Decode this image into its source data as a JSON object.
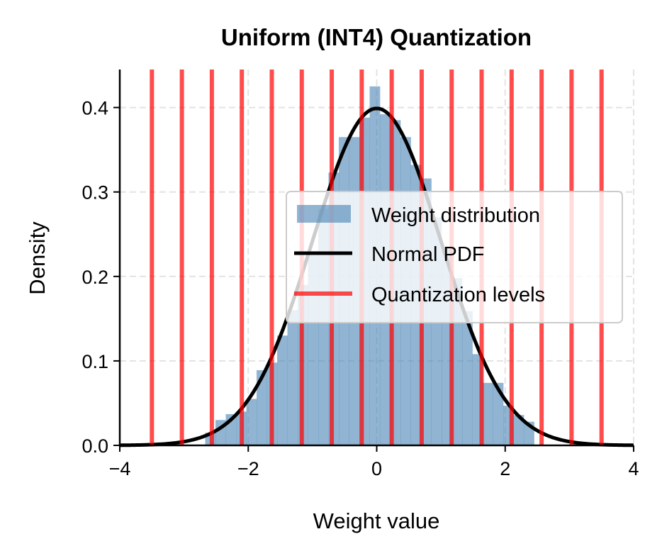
{
  "chart_data": {
    "type": "bar",
    "title": "Uniform (INT4) Quantization",
    "xlabel": "Weight value",
    "ylabel": "Density",
    "xlim": [
      -4,
      4
    ],
    "ylim": [
      0,
      0.445
    ],
    "xticks": [
      -4,
      -2,
      0,
      2,
      4
    ],
    "xtick_labels": [
      "−4",
      "−2",
      "0",
      "2",
      "4"
    ],
    "yticks": [
      0.0,
      0.1,
      0.2,
      0.3,
      0.4
    ],
    "ytick_labels": [
      "0.0",
      "0.1",
      "0.2",
      "0.3",
      "0.4"
    ],
    "grid": true,
    "legend_position": "center-right",
    "colors": {
      "histogram": "#4682b4",
      "pdf": "#000000",
      "levels": "#ff0000"
    },
    "histogram": {
      "name": "Weight distribution",
      "bin_width": 0.16,
      "bin_left_edges": [
        -2.67,
        -2.51,
        -2.35,
        -2.19,
        -2.03,
        -1.87,
        -1.71,
        -1.55,
        -1.39,
        -1.23,
        -1.07,
        -0.91,
        -0.75,
        -0.59,
        -0.43,
        -0.27,
        -0.11,
        0.05,
        0.21,
        0.37,
        0.53,
        0.69,
        0.85,
        1.01,
        1.17,
        1.33,
        1.49,
        1.65,
        1.81,
        1.97,
        2.13,
        2.29
      ],
      "density": [
        0.015,
        0.03,
        0.037,
        0.04,
        0.055,
        0.089,
        0.098,
        0.13,
        0.16,
        0.19,
        0.23,
        0.28,
        0.323,
        0.365,
        0.365,
        0.388,
        0.425,
        0.392,
        0.385,
        0.365,
        0.332,
        0.316,
        0.27,
        0.235,
        0.198,
        0.159,
        0.108,
        0.074,
        0.074,
        0.047,
        0.036,
        0.028
      ]
    },
    "pdf": {
      "name": "Normal PDF",
      "mean": 0,
      "std": 1
    },
    "quantization_levels": {
      "name": "Quantization levels",
      "values": [
        -3.5,
        -3.0333,
        -2.5667,
        -2.1,
        -1.6333,
        -1.1667,
        -0.7,
        -0.2333,
        0.2333,
        0.7,
        1.1667,
        1.6333,
        2.1,
        2.5667,
        3.0333,
        3.5
      ]
    }
  }
}
